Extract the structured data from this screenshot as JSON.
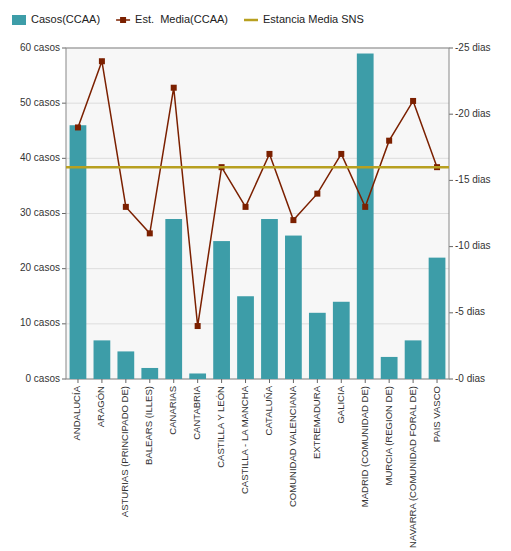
{
  "chart_data": {
    "type": "bar",
    "categories": [
      "ANDALUCÍA",
      "ARAGÓN",
      "ASTURIAS (PRINCIPADO DE)",
      "BALEARS (ILLES)",
      "CANARIAS",
      "CANTABRIA",
      "CASTILLA Y LEÓN",
      "CASTILLA - LA MANCHA",
      "CATALUÑA",
      "COMUNIDAD VALENCIANA",
      "EXTREMADURA",
      "GALICIA",
      "MADRID (COMUNIDAD DE)",
      "MURCIA (REGION DE)",
      "NAVARRA (COMUNIDAD FORAL DE)",
      "PAIS VASCO"
    ],
    "series": [
      {
        "name": "Casos(CCAA)",
        "type": "bar",
        "color": "#3d9da8",
        "values": [
          46,
          7,
          5,
          2,
          29,
          1,
          25,
          15,
          29,
          26,
          12,
          14,
          59,
          4,
          7,
          22
        ]
      },
      {
        "name": "Est.  Media(CCAA)",
        "type": "line",
        "axis": "y2",
        "color": "#7b2000",
        "marker": "square",
        "values": [
          19,
          24,
          13,
          11,
          22,
          4,
          16,
          13,
          17,
          12,
          14,
          17,
          13,
          18,
          21,
          16
        ]
      },
      {
        "name": "Estancia Media SNS",
        "type": "hline",
        "axis": "y2",
        "color": "#b8a020",
        "value": 16.0
      }
    ],
    "ylim": [
      0,
      60
    ],
    "yticks": [
      {
        "value": 0,
        "label": "0 casos"
      },
      {
        "value": 10,
        "label": "10 casos"
      },
      {
        "value": 20,
        "label": "20 casos"
      },
      {
        "value": 30,
        "label": "30 casos"
      },
      {
        "value": 40,
        "label": "40 casos"
      },
      {
        "value": 50,
        "label": "50 casos"
      },
      {
        "value": 60,
        "label": "60 casos"
      }
    ],
    "y2lim": [
      0,
      25
    ],
    "y2ticks": [
      {
        "value": 0,
        "label": "-0 dias"
      },
      {
        "value": 5,
        "label": "-5 dias"
      },
      {
        "value": 10,
        "label": "-10 dias"
      },
      {
        "value": 15,
        "label": "-15 dias"
      },
      {
        "value": 20,
        "label": "-20 dias"
      },
      {
        "value": 25,
        "label": "-25 dias"
      }
    ],
    "grid": true,
    "legend": "top"
  }
}
